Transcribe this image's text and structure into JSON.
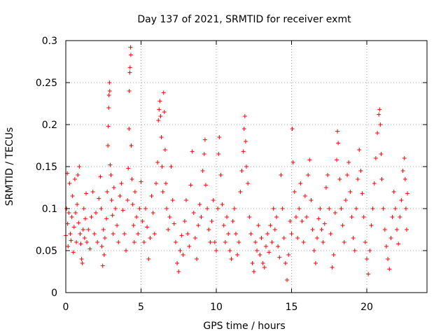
{
  "chart_data": {
    "type": "scatter",
    "title": "Day 137 of 2021, SRMTID for receiver exmt",
    "xlabel": "GPS time / hours",
    "ylabel": "SRMTID / TECUs",
    "xlim": [
      0,
      24
    ],
    "ylim": [
      0,
      0.3
    ],
    "xticks": [
      0,
      5,
      10,
      15,
      20
    ],
    "xtick_labels": [
      "0",
      "5",
      "10",
      "15",
      "20"
    ],
    "yticks": [
      0,
      0.05,
      0.1,
      0.15,
      0.2,
      0.25,
      0.3
    ],
    "ytick_labels": [
      "0",
      "0.05",
      "0.1",
      "0.15",
      "0.2",
      "0.25",
      "0.3"
    ],
    "grid": true,
    "marker": "+",
    "color": "#ff0000",
    "series": [
      {
        "name": "SRMTID",
        "points": [
          [
            0.0,
            0.068
          ],
          [
            0.05,
            0.1
          ],
          [
            0.1,
            0.142
          ],
          [
            0.12,
            0.082
          ],
          [
            0.15,
            0.055
          ],
          [
            0.2,
            0.095
          ],
          [
            0.25,
            0.13
          ],
          [
            0.3,
            0.07
          ],
          [
            0.35,
            0.062
          ],
          [
            0.4,
            0.09
          ],
          [
            0.45,
            0.115
          ],
          [
            0.5,
            0.048
          ],
          [
            0.55,
            0.078
          ],
          [
            0.6,
            0.135
          ],
          [
            0.65,
            0.095
          ],
          [
            0.7,
            0.06
          ],
          [
            0.75,
            0.105
          ],
          [
            0.8,
            0.14
          ],
          [
            0.85,
            0.083
          ],
          [
            0.9,
            0.15
          ],
          [
            0.95,
            0.07
          ],
          [
            1.0,
            0.058
          ],
          [
            1.05,
            0.04
          ],
          [
            1.1,
            0.035
          ],
          [
            1.15,
            0.075
          ],
          [
            1.2,
            0.1
          ],
          [
            1.25,
            0.065
          ],
          [
            1.3,
            0.088
          ],
          [
            1.35,
            0.118
          ],
          [
            1.4,
            0.06
          ],
          [
            1.5,
            0.075
          ],
          [
            1.6,
            0.052
          ],
          [
            1.7,
            0.09
          ],
          [
            1.8,
            0.12
          ],
          [
            1.9,
            0.07
          ],
          [
            2.0,
            0.095
          ],
          [
            2.1,
            0.06
          ],
          [
            2.2,
            0.112
          ],
          [
            2.3,
            0.138
          ],
          [
            2.35,
            0.1
          ],
          [
            2.4,
            0.055
          ],
          [
            2.45,
            0.032
          ],
          [
            2.5,
            0.075
          ],
          [
            2.55,
            0.045
          ],
          [
            2.6,
            0.065
          ],
          [
            2.7,
            0.088
          ],
          [
            2.75,
            0.12
          ],
          [
            2.8,
            0.175
          ],
          [
            2.82,
            0.198
          ],
          [
            2.85,
            0.22
          ],
          [
            2.87,
            0.235
          ],
          [
            2.9,
            0.25
          ],
          [
            2.92,
            0.24
          ],
          [
            2.95,
            0.152
          ],
          [
            3.0,
            0.14
          ],
          [
            3.05,
            0.11
          ],
          [
            3.1,
            0.092
          ],
          [
            3.15,
            0.07
          ],
          [
            3.2,
            0.125
          ],
          [
            3.3,
            0.1
          ],
          [
            3.4,
            0.08
          ],
          [
            3.5,
            0.06
          ],
          [
            3.6,
            0.115
          ],
          [
            3.7,
            0.13
          ],
          [
            3.8,
            0.098
          ],
          [
            3.9,
            0.07
          ],
          [
            4.0,
            0.05
          ],
          [
            4.1,
            0.11
          ],
          [
            4.15,
            0.148
          ],
          [
            4.2,
            0.195
          ],
          [
            4.22,
            0.24
          ],
          [
            4.25,
            0.262
          ],
          [
            4.27,
            0.268
          ],
          [
            4.3,
            0.292
          ],
          [
            4.32,
            0.283
          ],
          [
            4.35,
            0.175
          ],
          [
            4.4,
            0.135
          ],
          [
            4.45,
            0.105
          ],
          [
            4.5,
            0.08
          ],
          [
            4.55,
            0.06
          ],
          [
            4.6,
            0.12
          ],
          [
            4.7,
            0.09
          ],
          [
            4.8,
            0.07
          ],
          [
            4.9,
            0.1
          ],
          [
            5.0,
            0.132
          ],
          [
            5.1,
            0.085
          ],
          [
            5.2,
            0.06
          ],
          [
            5.3,
            0.1
          ],
          [
            5.4,
            0.078
          ],
          [
            5.5,
            0.04
          ],
          [
            5.6,
            0.065
          ],
          [
            5.7,
            0.115
          ],
          [
            5.8,
            0.095
          ],
          [
            5.9,
            0.07
          ],
          [
            6.0,
            0.13
          ],
          [
            6.1,
            0.155
          ],
          [
            6.15,
            0.205
          ],
          [
            6.2,
            0.218
          ],
          [
            6.25,
            0.228
          ],
          [
            6.3,
            0.21
          ],
          [
            6.35,
            0.185
          ],
          [
            6.4,
            0.15
          ],
          [
            6.45,
            0.12
          ],
          [
            6.5,
            0.238
          ],
          [
            6.55,
            0.215
          ],
          [
            6.6,
            0.17
          ],
          [
            6.65,
            0.13
          ],
          [
            6.7,
            0.1
          ],
          [
            6.8,
            0.075
          ],
          [
            6.9,
            0.09
          ],
          [
            7.0,
            0.15
          ],
          [
            7.1,
            0.11
          ],
          [
            7.2,
            0.082
          ],
          [
            7.3,
            0.06
          ],
          [
            7.4,
            0.035
          ],
          [
            7.5,
            0.025
          ],
          [
            7.6,
            0.05
          ],
          [
            7.7,
            0.068
          ],
          [
            7.8,
            0.045
          ],
          [
            7.9,
            0.085
          ],
          [
            8.0,
            0.11
          ],
          [
            8.1,
            0.07
          ],
          [
            8.2,
            0.055
          ],
          [
            8.3,
            0.128
          ],
          [
            8.4,
            0.168
          ],
          [
            8.5,
            0.095
          ],
          [
            8.6,
            0.065
          ],
          [
            8.7,
            0.04
          ],
          [
            8.8,
            0.08
          ],
          [
            8.9,
            0.105
          ],
          [
            9.0,
            0.09
          ],
          [
            9.1,
            0.145
          ],
          [
            9.2,
            0.165
          ],
          [
            9.25,
            0.182
          ],
          [
            9.3,
            0.128
          ],
          [
            9.4,
            0.1
          ],
          [
            9.5,
            0.075
          ],
          [
            9.6,
            0.06
          ],
          [
            9.7,
            0.085
          ],
          [
            9.8,
            0.11
          ],
          [
            9.9,
            0.06
          ],
          [
            10.0,
            0.05
          ],
          [
            10.1,
            0.1
          ],
          [
            10.15,
            0.165
          ],
          [
            10.2,
            0.185
          ],
          [
            10.3,
            0.14
          ],
          [
            10.4,
            0.105
          ],
          [
            10.5,
            0.08
          ],
          [
            10.6,
            0.06
          ],
          [
            10.7,
            0.09
          ],
          [
            10.8,
            0.07
          ],
          [
            10.9,
            0.05
          ],
          [
            11.0,
            0.04
          ],
          [
            11.1,
            0.085
          ],
          [
            11.2,
            0.1
          ],
          [
            11.3,
            0.07
          ],
          [
            11.4,
            0.045
          ],
          [
            11.5,
            0.06
          ],
          [
            11.6,
            0.12
          ],
          [
            11.7,
            0.145
          ],
          [
            11.8,
            0.168
          ],
          [
            11.85,
            0.195
          ],
          [
            11.9,
            0.21
          ],
          [
            11.95,
            0.18
          ],
          [
            12.0,
            0.15
          ],
          [
            12.1,
            0.13
          ],
          [
            12.2,
            0.09
          ],
          [
            12.3,
            0.07
          ],
          [
            12.4,
            0.035
          ],
          [
            12.5,
            0.025
          ],
          [
            12.6,
            0.06
          ],
          [
            12.7,
            0.05
          ],
          [
            12.8,
            0.08
          ],
          [
            12.9,
            0.045
          ],
          [
            13.0,
            0.065
          ],
          [
            13.1,
            0.035
          ],
          [
            13.2,
            0.03
          ],
          [
            13.3,
            0.055
          ],
          [
            13.4,
            0.07
          ],
          [
            13.5,
            0.048
          ],
          [
            13.6,
            0.08
          ],
          [
            13.7,
            0.06
          ],
          [
            13.8,
            0.1
          ],
          [
            13.9,
            0.075
          ],
          [
            14.0,
            0.09
          ],
          [
            14.1,
            0.055
          ],
          [
            14.2,
            0.042
          ],
          [
            14.3,
            0.14
          ],
          [
            14.4,
            0.1
          ],
          [
            14.5,
            0.065
          ],
          [
            14.6,
            0.035
          ],
          [
            14.7,
            0.015
          ],
          [
            14.8,
            0.045
          ],
          [
            14.9,
            0.085
          ],
          [
            15.0,
            0.07
          ],
          [
            15.05,
            0.195
          ],
          [
            15.1,
            0.155
          ],
          [
            15.2,
            0.12
          ],
          [
            15.3,
            0.09
          ],
          [
            15.4,
            0.065
          ],
          [
            15.5,
            0.1
          ],
          [
            15.6,
            0.13
          ],
          [
            15.7,
            0.085
          ],
          [
            15.8,
            0.06
          ],
          [
            15.9,
            0.115
          ],
          [
            16.0,
            0.09
          ],
          [
            16.1,
            0.14
          ],
          [
            16.2,
            0.158
          ],
          [
            16.3,
            0.11
          ],
          [
            16.4,
            0.075
          ],
          [
            16.5,
            0.05
          ],
          [
            16.6,
            0.035
          ],
          [
            16.7,
            0.065
          ],
          [
            16.8,
            0.088
          ],
          [
            16.9,
            0.1
          ],
          [
            17.0,
            0.075
          ],
          [
            17.1,
            0.06
          ],
          [
            17.2,
            0.082
          ],
          [
            17.3,
            0.125
          ],
          [
            17.4,
            0.14
          ],
          [
            17.5,
            0.1
          ],
          [
            17.6,
            0.07
          ],
          [
            17.7,
            0.03
          ],
          [
            17.8,
            0.045
          ],
          [
            17.9,
            0.095
          ],
          [
            18.0,
            0.158
          ],
          [
            18.05,
            0.192
          ],
          [
            18.1,
            0.178
          ],
          [
            18.2,
            0.135
          ],
          [
            18.3,
            0.1
          ],
          [
            18.4,
            0.08
          ],
          [
            18.5,
            0.06
          ],
          [
            18.6,
            0.11
          ],
          [
            18.7,
            0.14
          ],
          [
            18.8,
            0.155
          ],
          [
            18.9,
            0.12
          ],
          [
            19.0,
            0.09
          ],
          [
            19.1,
            0.065
          ],
          [
            19.2,
            0.05
          ],
          [
            19.3,
            0.1
          ],
          [
            19.4,
            0.135
          ],
          [
            19.5,
            0.17
          ],
          [
            19.6,
            0.145
          ],
          [
            19.7,
            0.118
          ],
          [
            19.8,
            0.09
          ],
          [
            19.9,
            0.06
          ],
          [
            20.0,
            0.04
          ],
          [
            20.1,
            0.022
          ],
          [
            20.2,
            0.05
          ],
          [
            20.3,
            0.08
          ],
          [
            20.4,
            0.1
          ],
          [
            20.5,
            0.13
          ],
          [
            20.6,
            0.16
          ],
          [
            20.7,
            0.19
          ],
          [
            20.8,
            0.212
          ],
          [
            20.85,
            0.218
          ],
          [
            20.9,
            0.2
          ],
          [
            20.95,
            0.165
          ],
          [
            21.0,
            0.135
          ],
          [
            21.1,
            0.1
          ],
          [
            21.2,
            0.075
          ],
          [
            21.3,
            0.055
          ],
          [
            21.4,
            0.04
          ],
          [
            21.5,
            0.028
          ],
          [
            21.6,
            0.065
          ],
          [
            21.7,
            0.09
          ],
          [
            21.8,
            0.12
          ],
          [
            21.9,
            0.1
          ],
          [
            22.0,
            0.075
          ],
          [
            22.1,
            0.058
          ],
          [
            22.2,
            0.09
          ],
          [
            22.3,
            0.11
          ],
          [
            22.4,
            0.145
          ],
          [
            22.5,
            0.16
          ],
          [
            22.55,
            0.135
          ],
          [
            22.6,
            0.1
          ],
          [
            22.65,
            0.075
          ],
          [
            22.7,
            0.118
          ]
        ]
      }
    ]
  }
}
